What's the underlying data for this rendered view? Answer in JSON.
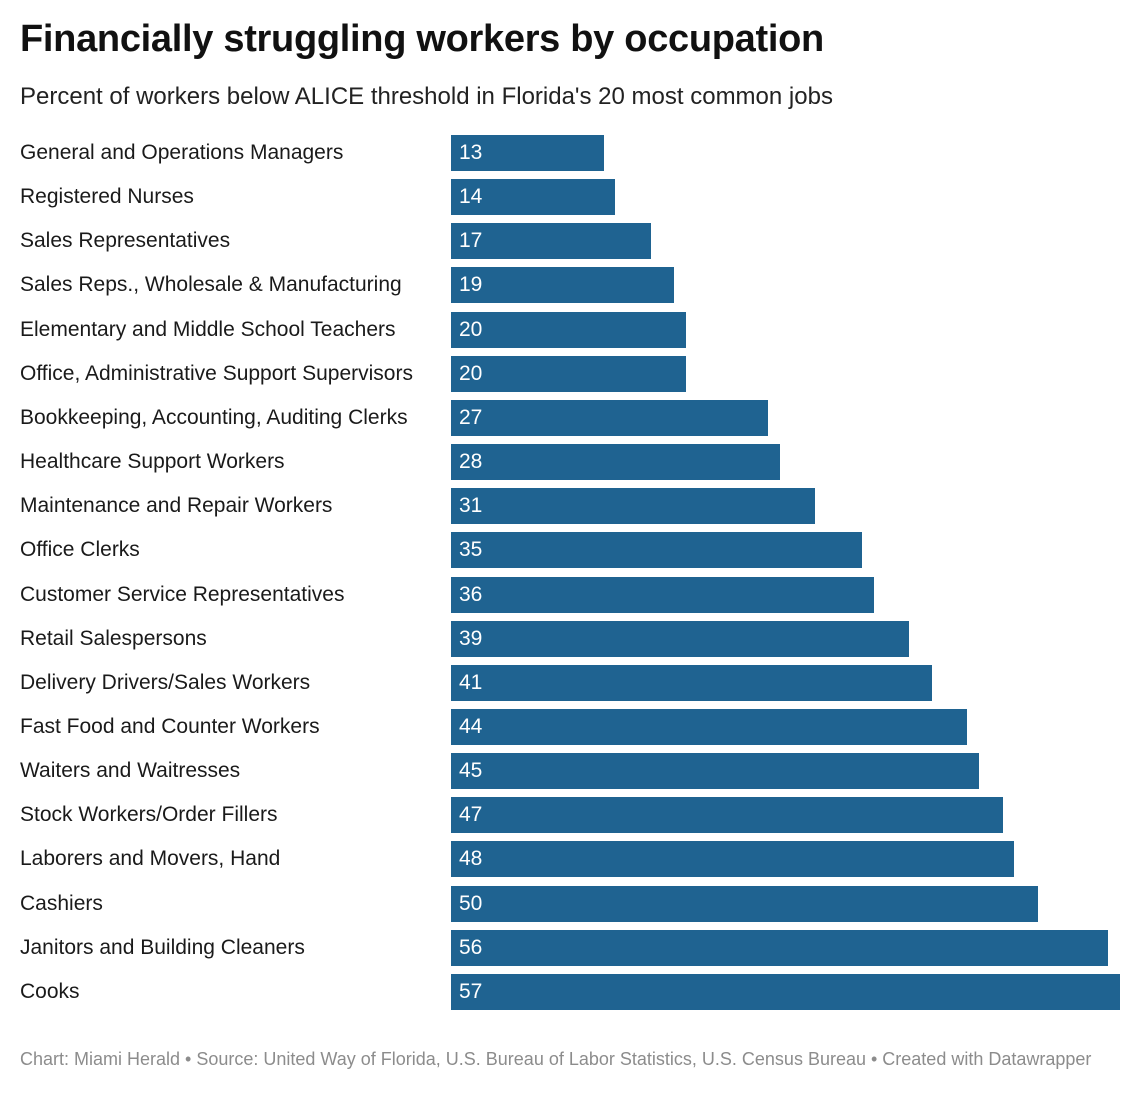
{
  "chart_data": {
    "type": "bar",
    "orientation": "horizontal",
    "title": "Financially struggling workers by occupation",
    "subtitle": "Percent of workers below ALICE threshold in Florida's 20 most common jobs",
    "categories": [
      "General and Operations Managers",
      "Registered Nurses",
      "Sales Representatives",
      "Sales Reps., Wholesale & Manufacturing",
      "Elementary and Middle School Teachers",
      "Office, Administrative Support Supervisors",
      "Bookkeeping, Accounting, Auditing Clerks",
      "Healthcare Support Workers",
      "Maintenance and Repair Workers",
      "Office Clerks",
      "Customer Service Representatives",
      "Retail Salespersons",
      "Delivery Drivers/Sales Workers",
      "Fast Food and Counter Workers",
      "Waiters and Waitresses",
      "Stock Workers/Order Fillers",
      "Laborers and Movers, Hand",
      "Cashiers",
      "Janitors and Building Cleaners",
      "Cooks"
    ],
    "values": [
      13,
      14,
      17,
      19,
      20,
      20,
      27,
      28,
      31,
      35,
      36,
      39,
      41,
      44,
      45,
      47,
      48,
      50,
      56,
      57
    ],
    "value_labels": [
      "13",
      "14",
      "17",
      "19",
      "20",
      "20",
      "27",
      "28",
      "31",
      "35",
      "36",
      "39",
      "41",
      "44",
      "45",
      "47",
      "48",
      "50",
      "56",
      "57"
    ],
    "xlim": [
      0,
      57
    ],
    "grid": false,
    "legend": "none",
    "bar_color": "#1f6391",
    "footer": "Chart: Miami Herald • Source: United Way of Florida, U.S. Bureau of Labor Statistics, U.S. Census Bureau • Created with Datawrapper"
  }
}
